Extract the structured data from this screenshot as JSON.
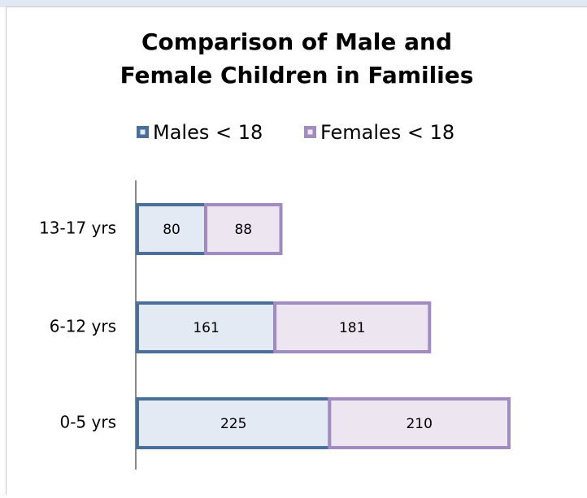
{
  "chart_data": {
    "type": "bar",
    "orientation": "horizontal",
    "stacked": true,
    "title": [
      "Comparison of Male and",
      "Female Children in Families"
    ],
    "categories": [
      "0-5 yrs",
      "6-12 yrs",
      "13-17 yrs"
    ],
    "series": [
      {
        "name": "Males < 18",
        "color": "#4a7099",
        "fill": "#e3eaf4",
        "values": [
          225,
          161,
          80
        ]
      },
      {
        "name": "Females < 18",
        "color": "#a08cc0",
        "fill": "#ede6f1",
        "values": [
          210,
          181,
          88
        ]
      }
    ],
    "legend": "top"
  }
}
